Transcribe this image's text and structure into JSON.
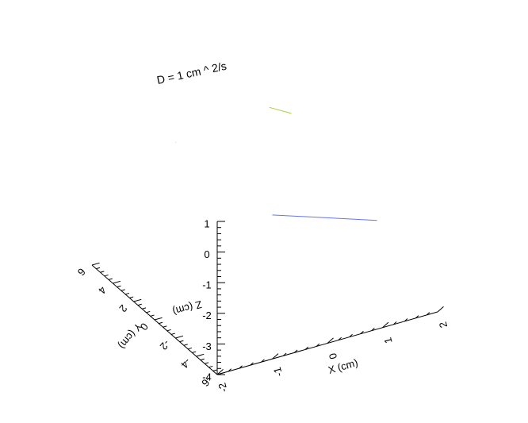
{
  "chart_data": {
    "type": "line",
    "projection": "3d",
    "annotation": "D = 1 cm ^ 2/s",
    "axes": {
      "x": {
        "label": "X (cm)",
        "range": [
          -2,
          2
        ],
        "ticks": [
          -2,
          -1,
          0,
          1,
          2
        ]
      },
      "y": {
        "label": "Y (cm)",
        "range": [
          -6,
          6
        ],
        "ticks": [
          -6,
          -4,
          -2,
          0,
          2,
          4,
          6
        ]
      },
      "z": {
        "label": "Z (cm)",
        "range": [
          -4,
          1
        ],
        "ticks": [
          -4,
          -3,
          -2,
          -1,
          0,
          1
        ]
      }
    },
    "grid": false,
    "series": [
      {
        "color": "#6677dd",
        "x": [
          -1.0,
          0.9
        ],
        "y": [
          -6.0,
          -6.0
        ],
        "z": [
          0.7,
          -0.45
        ]
      },
      {
        "color": "#6677dd",
        "x": [
          -1.0,
          -0.9
        ],
        "y": [
          3.3,
          3.8
        ],
        "z": [
          0.3,
          0.1
        ]
      },
      {
        "color": "#aacc44",
        "x": [
          0.5,
          0.9
        ],
        "y": [
          2.2,
          2.2
        ],
        "z": [
          1.0,
          0.6
        ]
      }
    ]
  }
}
